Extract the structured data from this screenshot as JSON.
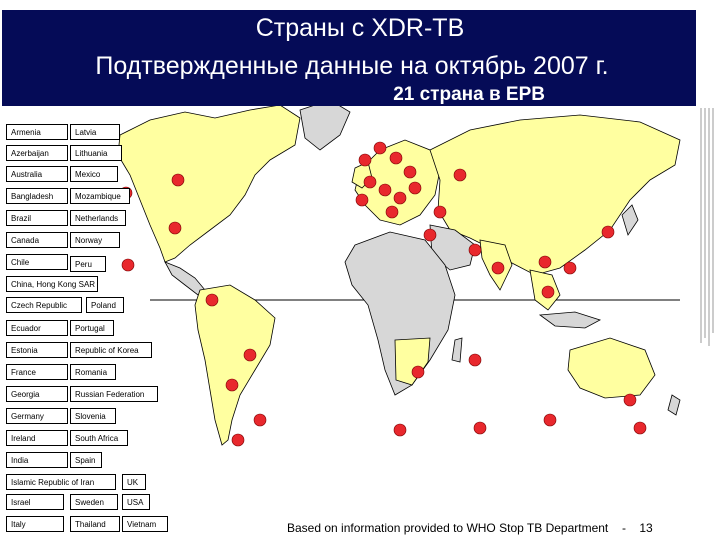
{
  "title": {
    "line1": "Страны с XDR-TB",
    "line2": "Подтвержденные данные на октябрь 2007 г.",
    "line3": "21 страна в ЕРВ"
  },
  "countries": [
    "Armenia",
    "Latvia",
    "Azerbaijan",
    "Lithuania",
    "Australia",
    "Mexico",
    "Bangladesh",
    "Mozambique",
    "Brazil",
    "Netherlands",
    "Canada",
    "Norway",
    "Chile",
    "Peru",
    "China, Hong Kong SAR",
    "Czech Republic",
    "Poland",
    "Ecuador",
    "Portugal",
    "Estonia",
    "Republic of Korea",
    "France",
    "Romania",
    "Georgia",
    "Russian Federation",
    "Germany",
    "Slovenia",
    "Ireland",
    "South Africa",
    "India",
    "Spain",
    "Islamic Republic of Iran",
    "UK",
    "Israel",
    "Sweden",
    "USA",
    "Italy",
    "Thailand",
    "Vietnam"
  ],
  "footer": {
    "source": "Based on information provided to WHO Stop TB Department",
    "dash": "-",
    "page": "13"
  },
  "colors": {
    "title_bg": "#050b57",
    "land_highlight": "#ffffa0",
    "land_other": "#d7d7d7",
    "marker": "#e8282d"
  }
}
